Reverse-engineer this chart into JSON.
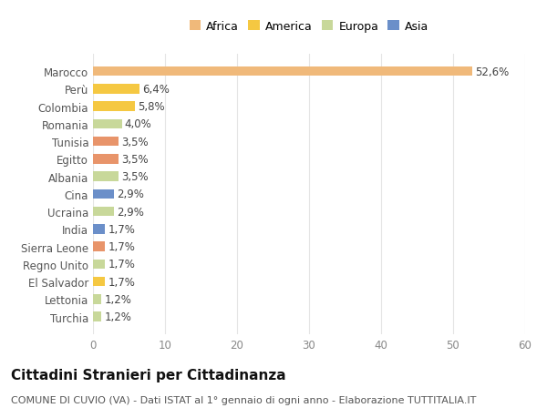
{
  "categories": [
    "Turchia",
    "Lettonia",
    "El Salvador",
    "Regno Unito",
    "Sierra Leone",
    "India",
    "Ucraina",
    "Cina",
    "Albania",
    "Egitto",
    "Tunisia",
    "Romania",
    "Colombia",
    "Perù",
    "Marocco"
  ],
  "values": [
    1.2,
    1.2,
    1.7,
    1.7,
    1.7,
    1.7,
    2.9,
    2.9,
    3.5,
    3.5,
    3.5,
    4.0,
    5.8,
    6.4,
    52.6
  ],
  "colors": [
    "#c8d89a",
    "#c8d89a",
    "#f5c842",
    "#c8d89a",
    "#e8946a",
    "#6b8fc9",
    "#c8d89a",
    "#6b8fc9",
    "#c8d89a",
    "#e8946a",
    "#e8946a",
    "#c8d89a",
    "#f5c842",
    "#f5c842",
    "#f0b97a"
  ],
  "legend": [
    {
      "label": "Africa",
      "color": "#f0b97a"
    },
    {
      "label": "America",
      "color": "#f5c842"
    },
    {
      "label": "Europa",
      "color": "#c8d89a"
    },
    {
      "label": "Asia",
      "color": "#6b8fc9"
    }
  ],
  "xlim": [
    0,
    60
  ],
  "xticks": [
    0,
    10,
    20,
    30,
    40,
    50,
    60
  ],
  "title": "Cittadini Stranieri per Cittadinanza",
  "subtitle": "COMUNE DI CUVIO (VA) - Dati ISTAT al 1° gennaio di ogni anno - Elaborazione TUTTITALIA.IT",
  "bar_height": 0.55,
  "background_color": "#ffffff",
  "grid_color": "#e5e5e5",
  "label_fontsize": 8.5,
  "tick_fontsize": 8.5,
  "title_fontsize": 11,
  "subtitle_fontsize": 8
}
